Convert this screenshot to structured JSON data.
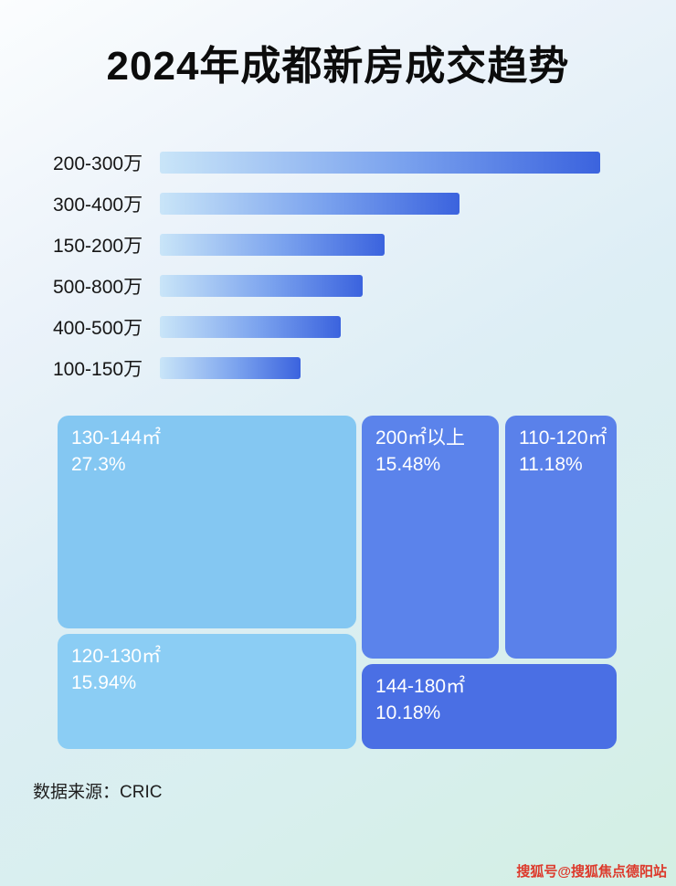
{
  "page": {
    "title": "2024年成都新房成交趋势",
    "footer_source": "数据来源：CRIC",
    "watermark": "搜狐号@搜狐焦点德阳站"
  },
  "chart_data": [
    {
      "type": "bar",
      "orientation": "horizontal",
      "title": "2024年成都新房成交趋势",
      "categories": [
        "200-300万",
        "300-400万",
        "150-200万",
        "500-800万",
        "400-500万",
        "100-150万"
      ],
      "values_relative_pct": [
        100,
        68,
        51,
        46,
        41,
        32
      ],
      "value_labels_shown": false,
      "axis_shown": false,
      "legend": "none",
      "bar_color_gradient": [
        "#c9e5f8",
        "#3b63de"
      ]
    },
    {
      "type": "treemap",
      "blocks": [
        {
          "label": "130-144㎡",
          "value": "27.3%",
          "color": "#84c7f2"
        },
        {
          "label": "200㎡以上",
          "value": "15.48%",
          "color": "#5b83eb"
        },
        {
          "label": "110-120㎡",
          "value": "11.18%",
          "color": "#5a81ea"
        },
        {
          "label": "120-130㎡",
          "value": "15.94%",
          "color": "#8bcdf4"
        },
        {
          "label": "144-180㎡",
          "value": "10.18%",
          "color": "#4a6fe4"
        }
      ]
    }
  ]
}
